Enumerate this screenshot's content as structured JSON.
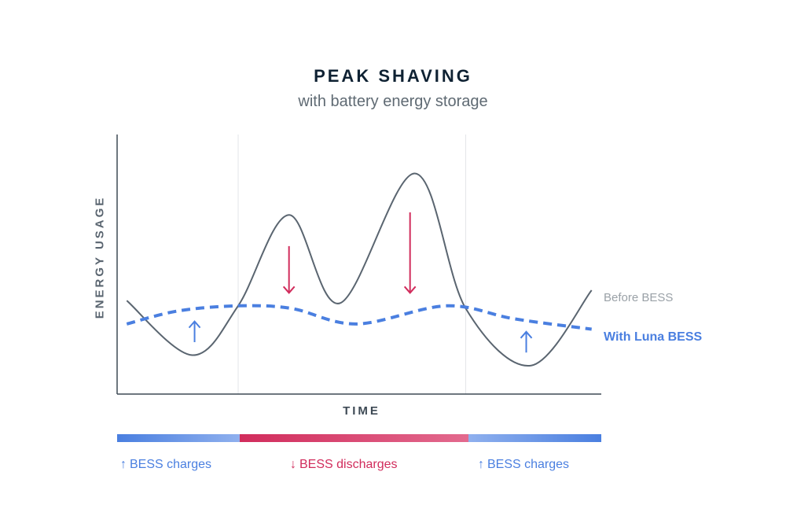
{
  "chart_data": {
    "type": "line",
    "title": "PEAK SHAVING",
    "subtitle": "with battery energy storage",
    "xlabel": "TIME",
    "ylabel": "ENERGY USAGE",
    "xlim": [
      0,
      100
    ],
    "ylim": [
      0,
      100
    ],
    "grid": false,
    "phase_boundaries": [
      25,
      72
    ],
    "series": [
      {
        "name": "Before BESS",
        "color": "#5a6570",
        "style": "solid",
        "x": [
          2,
          15.5,
          25,
          35.5,
          46,
          61.5,
          72,
          85.5,
          98
        ],
        "y": [
          36,
          15,
          34,
          69,
          35,
          85,
          33,
          11,
          40
        ]
      },
      {
        "name": "With Luna BESS",
        "color": "#4a7fe0",
        "style": "dashed",
        "x": [
          2,
          12.5,
          25,
          36,
          49.5,
          68,
          82,
          98
        ],
        "y": [
          27,
          32,
          34,
          33,
          27,
          34,
          29,
          25
        ]
      }
    ],
    "annotations": [
      {
        "kind": "arrow-up",
        "x": 16,
        "y_from": 20,
        "y_to": 28,
        "color": "#4a7fe0"
      },
      {
        "kind": "arrow-down",
        "x": 35.5,
        "y_from": 57,
        "y_to": 39,
        "color": "#d12c5c"
      },
      {
        "kind": "arrow-down",
        "x": 60.5,
        "y_from": 70,
        "y_to": 39,
        "color": "#d12c5c"
      },
      {
        "kind": "arrow-up",
        "x": 84.5,
        "y_from": 16,
        "y_to": 24,
        "color": "#4a7fe0"
      }
    ],
    "phases": [
      {
        "label": "BESS charges",
        "direction": "up",
        "color": "#4a7fe0"
      },
      {
        "label": "BESS discharges",
        "direction": "down",
        "color": "#d12c5c"
      },
      {
        "label": "BESS charges",
        "direction": "up",
        "color": "#4a7fe0"
      }
    ]
  },
  "legend": {
    "before": "Before BESS",
    "with": "With Luna BESS"
  },
  "phase_labels": {
    "arrow_up": "↑",
    "arrow_down": "↓"
  }
}
